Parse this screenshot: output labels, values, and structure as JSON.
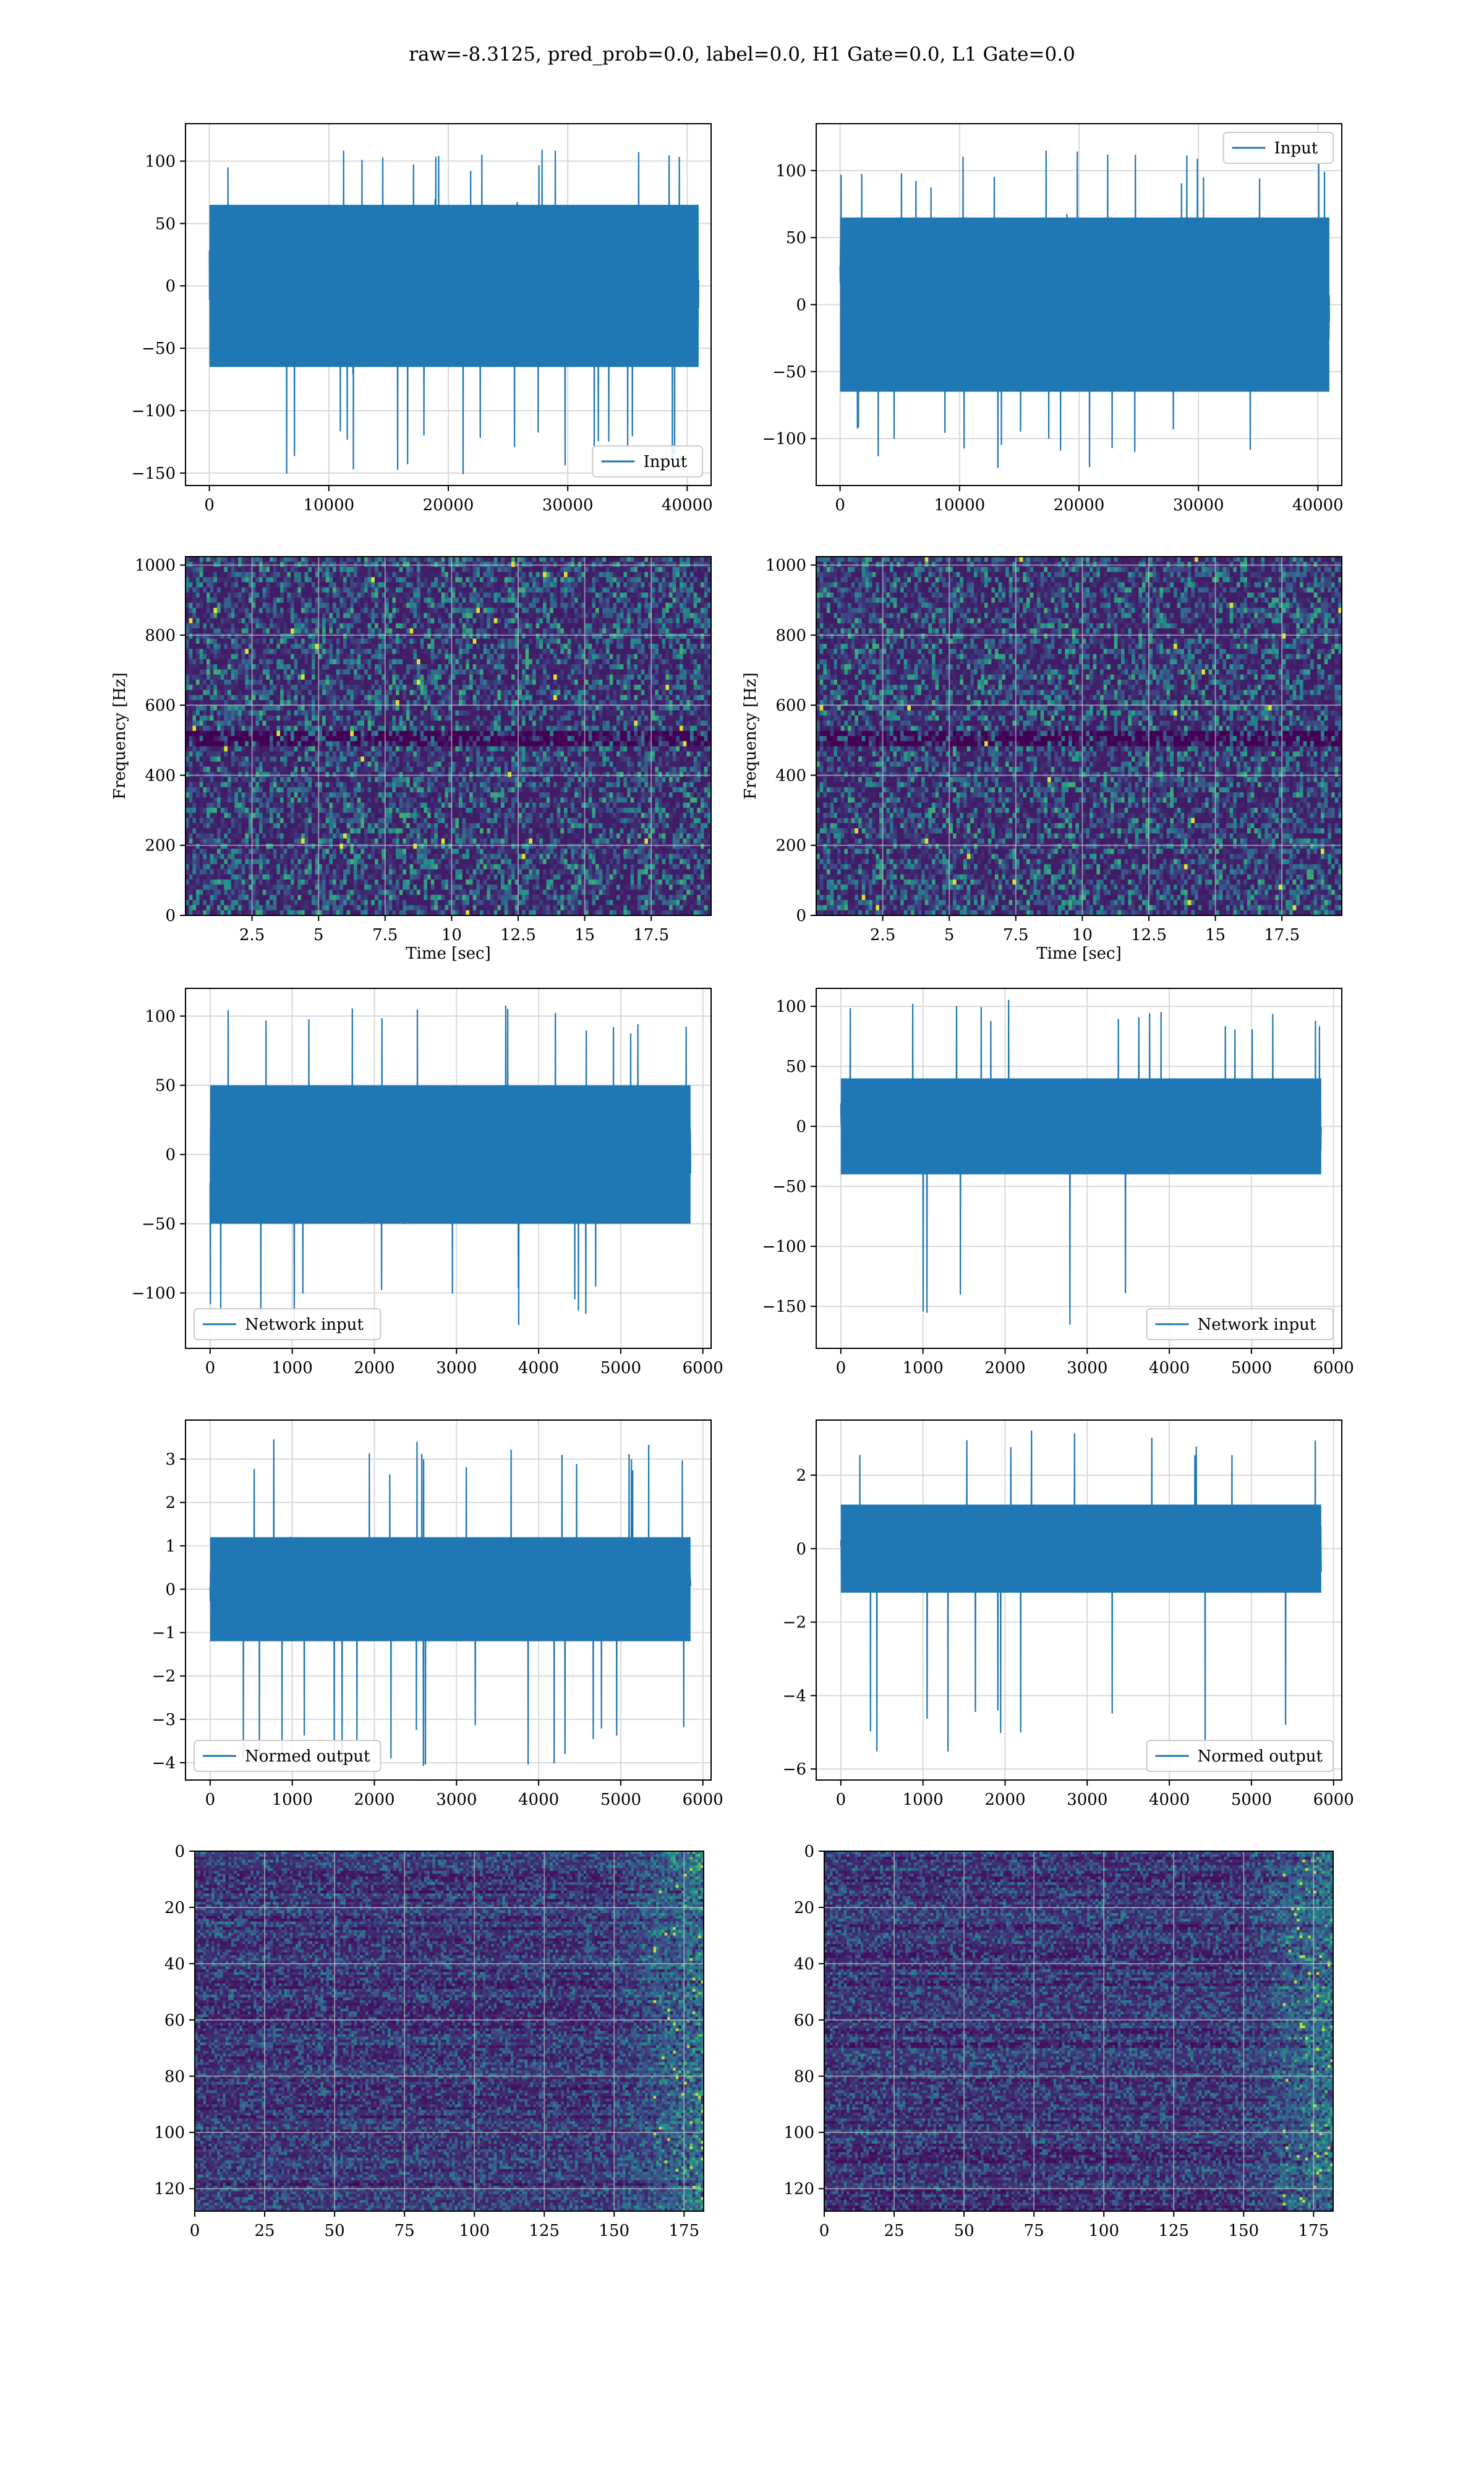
{
  "suptitle": "raw=-8.3125, pred_prob=0.0, label=0.0, H1 Gate=0.0, L1 Gate=0.0",
  "colors": {
    "line": "#1f77b4",
    "grid": "#d9d9d9",
    "viridis": [
      "#440154",
      "#3b528b",
      "#21918c",
      "#5ec962",
      "#fde725"
    ]
  },
  "chart_data": [
    {
      "id": "H1 input",
      "type": "line",
      "xlim": [
        -2000,
        42000
      ],
      "ylim": [
        -160,
        130
      ],
      "xticks": [
        0,
        10000,
        20000,
        30000,
        40000
      ],
      "yticks": [
        -150,
        -100,
        -50,
        0,
        50,
        100
      ],
      "n_samples": 40960,
      "envelope": {
        "typical_max": 65,
        "typical_min": -65,
        "peak_max": 118,
        "peak_min": -152
      },
      "legend": {
        "label": "Input",
        "loc": "lower right"
      },
      "grid": true
    },
    {
      "id": "L1 input",
      "type": "line",
      "xlim": [
        -2000,
        42000
      ],
      "ylim": [
        -135,
        135
      ],
      "xticks": [
        0,
        10000,
        20000,
        30000,
        40000
      ],
      "yticks": [
        -100,
        -50,
        0,
        50,
        100
      ],
      "n_samples": 40960,
      "envelope": {
        "typical_max": 65,
        "typical_min": -65,
        "peak_max": 115,
        "peak_min": -122
      },
      "legend": {
        "label": "Input",
        "loc": "upper right"
      },
      "grid": true
    },
    {
      "id": "H1 spectrogram",
      "type": "heatmap",
      "xlim": [
        0,
        19.75
      ],
      "ylim": [
        0,
        1024
      ],
      "xticks": [
        2.5,
        5.0,
        7.5,
        10.0,
        12.5,
        15.0,
        17.5
      ],
      "yticks": [
        0,
        200,
        400,
        600,
        800,
        1000
      ],
      "xlabel": "Time [sec]",
      "ylabel": "Frequency [Hz]",
      "colormap": "viridis",
      "grid": true
    },
    {
      "id": "L1 spectrogram",
      "type": "heatmap",
      "xlim": [
        0,
        19.75
      ],
      "ylim": [
        0,
        1024
      ],
      "xticks": [
        2.5,
        5.0,
        7.5,
        10.0,
        12.5,
        15.0,
        17.5
      ],
      "yticks": [
        0,
        200,
        400,
        600,
        800,
        1000
      ],
      "xlabel": "Time [sec]",
      "ylabel": "Frequency [Hz]",
      "colormap": "viridis",
      "grid": true
    },
    {
      "id": "H1 network input",
      "type": "line",
      "xlim": [
        -300,
        6100
      ],
      "ylim": [
        -140,
        120
      ],
      "xticks": [
        0,
        1000,
        2000,
        3000,
        4000,
        5000,
        6000
      ],
      "yticks": [
        -100,
        -50,
        0,
        50,
        100
      ],
      "n_samples": 5850,
      "envelope": {
        "typical_max": 50,
        "typical_min": -50,
        "peak_max": 108,
        "peak_min": -125
      },
      "legend": {
        "label": "Network input",
        "loc": "lower left"
      },
      "grid": true
    },
    {
      "id": "L1 network input",
      "type": "line",
      "xlim": [
        -300,
        6100
      ],
      "ylim": [
        -185,
        115
      ],
      "xticks": [
        0,
        1000,
        2000,
        3000,
        4000,
        5000,
        6000
      ],
      "yticks": [
        -150,
        -100,
        -50,
        0,
        50,
        100
      ],
      "n_samples": 5850,
      "envelope": {
        "typical_max": 40,
        "typical_min": -40,
        "peak_max": 106,
        "peak_min": -175
      },
      "legend": {
        "label": "Network input",
        "loc": "lower right"
      },
      "grid": true
    },
    {
      "id": "H1 normed output",
      "type": "line",
      "xlim": [
        -300,
        6100
      ],
      "ylim": [
        -4.4,
        3.9
      ],
      "xticks": [
        0,
        1000,
        2000,
        3000,
        4000,
        5000,
        6000
      ],
      "yticks": [
        -4,
        -3,
        -2,
        -1,
        0,
        1,
        2,
        3
      ],
      "n_samples": 5850,
      "envelope": {
        "typical_max": 1.2,
        "typical_min": -1.2,
        "peak_max": 3.5,
        "peak_min": -4.1
      },
      "legend": {
        "label": "Normed output",
        "loc": "lower left"
      },
      "grid": true
    },
    {
      "id": "L1 normed output",
      "type": "line",
      "xlim": [
        -300,
        6100
      ],
      "ylim": [
        -6.3,
        3.5
      ],
      "xticks": [
        0,
        1000,
        2000,
        3000,
        4000,
        5000,
        6000
      ],
      "yticks": [
        -6,
        -4,
        -2,
        0,
        2
      ],
      "n_samples": 5850,
      "envelope": {
        "typical_max": 1.2,
        "typical_min": -1.2,
        "peak_max": 3.3,
        "peak_min": -5.8
      },
      "legend": {
        "label": "Normed output",
        "loc": "lower right"
      },
      "grid": true
    },
    {
      "id": "H1 feature map",
      "type": "heatmap",
      "xlim": [
        0,
        182
      ],
      "ylim": [
        128,
        0
      ],
      "xticks": [
        0,
        25,
        50,
        75,
        100,
        125,
        150,
        175
      ],
      "yticks": [
        0,
        20,
        40,
        60,
        80,
        100,
        120
      ],
      "colormap": "viridis",
      "grid": true
    },
    {
      "id": "L1 feature map",
      "type": "heatmap",
      "xlim": [
        0,
        182
      ],
      "ylim": [
        128,
        0
      ],
      "xticks": [
        0,
        25,
        50,
        75,
        100,
        125,
        150,
        175
      ],
      "yticks": [
        0,
        20,
        40,
        60,
        80,
        100,
        120
      ],
      "colormap": "viridis",
      "grid": true
    }
  ]
}
